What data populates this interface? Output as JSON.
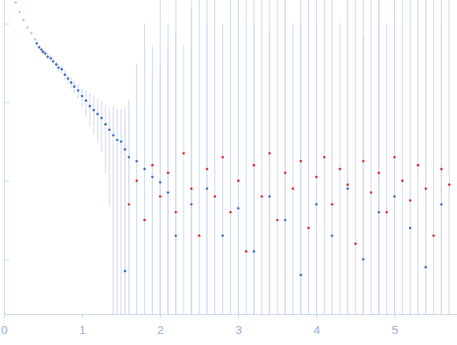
{
  "chart_data": {
    "type": "scatter",
    "log": "y",
    "tick_labels": "x",
    "xlim": [
      0,
      5.8
    ],
    "xticks": [
      0,
      1,
      2,
      3,
      4,
      5
    ],
    "ylim": [
      0.0002,
      2
    ],
    "yticks": [
      0.001,
      0.01,
      0.1,
      1
    ],
    "series": [
      {
        "color": "#b8c8ea",
        "marker": "circle",
        "x": [
          0.15,
          0.2,
          0.25,
          0.3,
          0.35,
          0.4
        ],
        "values": [
          1.86,
          1.41,
          1.12,
          0.891,
          0.759,
          0.631
        ],
        "errors": [
          0.02,
          0.02,
          0.02,
          0.02,
          0.02,
          0.02
        ]
      },
      {
        "color": "#3a6bc7",
        "marker": "circle",
        "x": [
          0.42,
          0.45,
          0.48,
          0.5,
          0.53,
          0.56,
          0.6,
          0.63,
          0.67,
          0.7,
          0.74,
          0.78,
          0.82,
          0.86,
          0.9,
          0.95,
          1.0,
          1.05,
          1.1,
          1.15,
          1.2,
          1.25,
          1.3,
          1.35,
          1.4,
          1.45,
          1.5,
          1.55,
          1.55,
          1.6,
          1.7,
          1.8,
          1.9,
          2.0,
          2.1,
          2.2,
          2.4,
          2.6,
          2.8,
          3.0,
          3.2,
          3.4,
          3.6,
          3.8,
          4.0,
          4.2,
          4.4,
          4.6,
          4.8,
          5.0,
          5.2,
          5.4,
          5.6
        ],
        "values": [
          0.562,
          0.501,
          0.468,
          0.437,
          0.417,
          0.38,
          0.363,
          0.331,
          0.302,
          0.275,
          0.263,
          0.224,
          0.2,
          0.178,
          0.158,
          0.141,
          0.12,
          0.105,
          0.0891,
          0.0794,
          0.0708,
          0.0631,
          0.0525,
          0.0447,
          0.038,
          0.0331,
          0.0316,
          0.0251,
          0.000708,
          0.02,
          0.0178,
          0.0141,
          0.0112,
          0.00955,
          0.00708,
          0.002,
          0.00501,
          0.00794,
          0.002,
          0.00447,
          0.00126,
          0.00631,
          0.00316,
          0.000631,
          0.00501,
          0.002,
          0.00794,
          0.001,
          0.00398,
          0.00631,
          0.00251,
          0.000794,
          0.00501
        ],
        "errors": [
          0.03,
          0.03,
          0.03,
          0.03,
          0.03,
          0.03,
          0.03,
          0.03,
          0.03,
          0.03,
          0.03,
          0.03,
          0.03,
          0.03,
          0.03,
          0.03,
          0.03,
          0.04,
          0.04,
          0.04,
          0.04,
          0.04,
          0.04,
          0.04,
          0.05,
          0.05,
          0.05,
          0.06,
          0.06,
          0.06,
          0.08,
          0.1,
          0.2,
          0.3,
          0.5,
          0.8,
          1.5,
          2,
          1,
          2,
          3,
          2,
          3,
          1,
          2,
          3,
          2,
          3,
          2,
          3,
          2,
          3,
          2
        ]
      },
      {
        "color": "#e8202a",
        "marker": "circle",
        "x": [
          1.6,
          1.7,
          1.8,
          1.9,
          2.0,
          2.1,
          2.2,
          2.3,
          2.4,
          2.5,
          2.6,
          2.7,
          2.8,
          2.9,
          3.0,
          3.1,
          3.2,
          3.3,
          3.4,
          3.5,
          3.6,
          3.7,
          3.8,
          3.9,
          4.0,
          4.1,
          4.2,
          4.3,
          4.4,
          4.5,
          4.6,
          4.7,
          4.8,
          4.9,
          5.0,
          5.1,
          5.2,
          5.3,
          5.4,
          5.5,
          5.6,
          5.7
        ],
        "values": [
          0.00501,
          0.01,
          0.00316,
          0.0158,
          0.00631,
          0.0126,
          0.00398,
          0.0224,
          0.00794,
          0.002,
          0.0141,
          0.00631,
          0.02,
          0.00398,
          0.01,
          0.00126,
          0.0158,
          0.00631,
          0.0224,
          0.00316,
          0.0126,
          0.00794,
          0.0178,
          0.00251,
          0.0112,
          0.02,
          0.00501,
          0.0141,
          0.00891,
          0.00158,
          0.0178,
          0.00708,
          0.0126,
          0.00398,
          0.02,
          0.01,
          0.00562,
          0.0158,
          0.00794,
          0.002,
          0.0141,
          0.00891
        ],
        "errors": [
          0.1,
          0.3,
          1,
          0.5,
          2,
          1,
          3,
          0.5,
          2,
          3,
          1,
          2,
          0.6,
          3,
          2,
          3,
          1,
          2,
          0.8,
          3,
          2,
          1,
          2,
          3,
          1,
          2,
          3,
          1,
          2,
          3,
          0.7,
          2,
          3,
          1,
          2,
          3,
          1,
          2,
          3,
          2,
          1,
          3
        ]
      }
    ]
  }
}
